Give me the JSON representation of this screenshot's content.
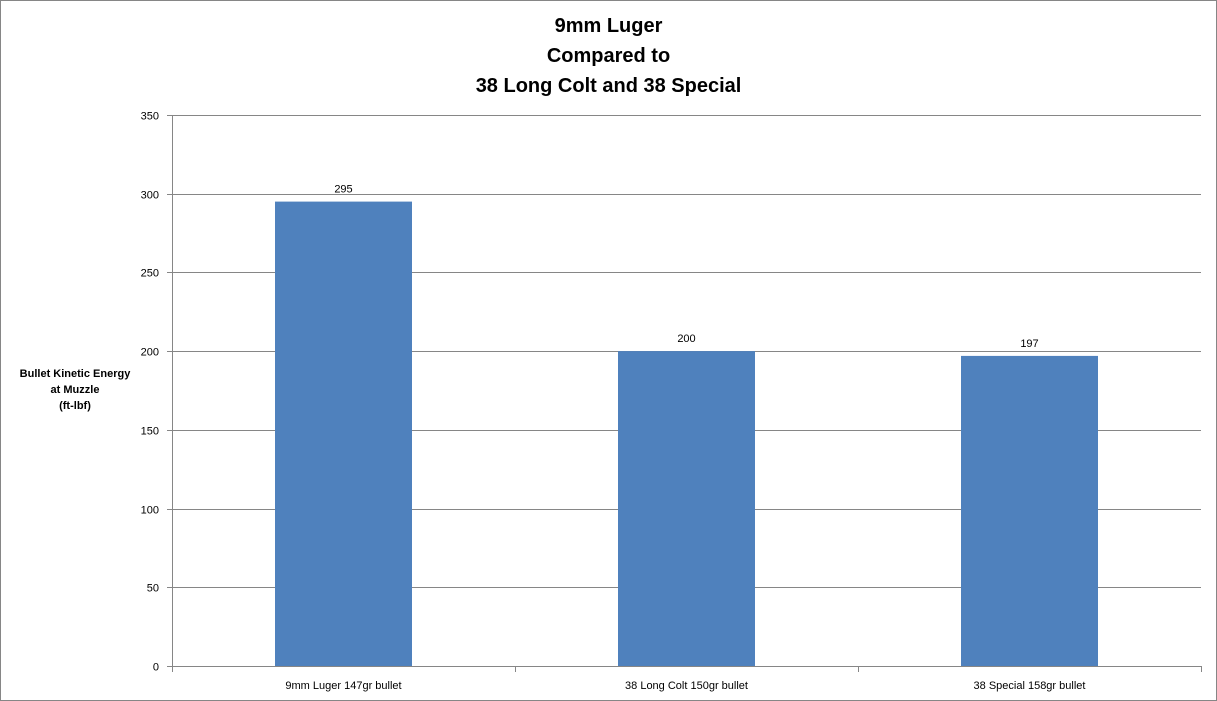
{
  "chart_data": {
    "type": "bar",
    "title_lines": [
      "9mm Luger",
      "Compared to",
      "38 Long Colt and 38 Special"
    ],
    "ylabel_lines": [
      "Bullet  Kinetic Energy",
      "at Muzzle",
      "(ft-lbf)"
    ],
    "xlabel": "",
    "categories": [
      "9mm Luger 147gr bullet",
      "38 Long Colt 150gr bullet",
      "38 Special 158gr bullet"
    ],
    "values": [
      295,
      200,
      197
    ],
    "data_labels": [
      "295",
      "200",
      "197"
    ],
    "ylim": [
      0,
      350
    ],
    "y_ticks": [
      "0",
      "50",
      "100",
      "150",
      "200",
      "250",
      "300",
      "350"
    ],
    "y_tick_values": [
      0,
      50,
      100,
      150,
      200,
      250,
      300,
      350
    ],
    "grid": true,
    "legend": "none",
    "colors": {
      "bar": "#4f81bd",
      "grid": "#868686",
      "axis": "#868686",
      "border": "#868686"
    }
  }
}
